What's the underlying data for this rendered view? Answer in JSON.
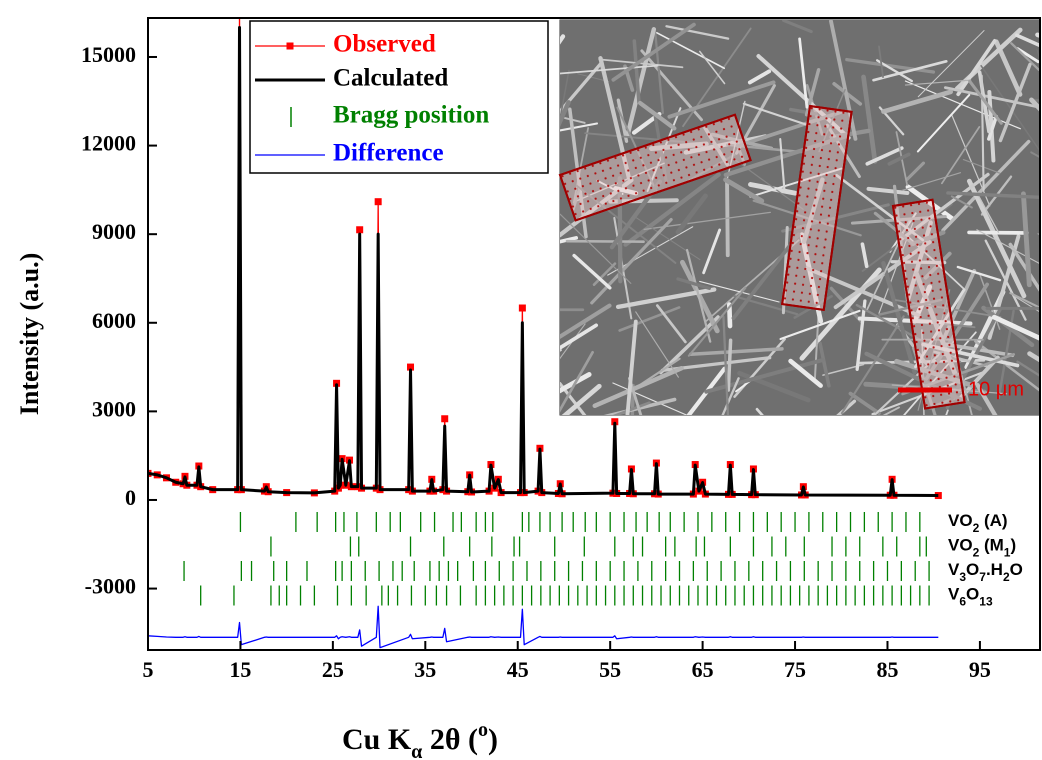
{
  "chart_data": {
    "type": "line",
    "y_label": "Intensity (a.u.)",
    "x_label_parts": [
      "Cu K",
      "α",
      " 2θ (",
      "o",
      ")"
    ],
    "xlim": [
      5,
      101.5
    ],
    "xticks": [
      5,
      15,
      25,
      35,
      45,
      55,
      65,
      75,
      85,
      95
    ],
    "ylim": [
      -5080,
      16320
    ],
    "yticks": [
      -3000,
      0,
      3000,
      6000,
      9000,
      12000,
      15000
    ],
    "x": [
      5,
      6,
      7,
      8,
      8.8,
      9.0,
      9.2,
      10.3,
      10.5,
      10.7,
      12,
      14.7,
      14.9,
      15.1,
      17.6,
      17.8,
      18,
      20,
      23,
      25.2,
      25.4,
      25.6,
      25.8,
      26.0,
      26.4,
      26.8,
      27.0,
      27.7,
      27.9,
      28.1,
      29.7,
      29.9,
      30.1,
      33.2,
      33.4,
      33.6,
      35.5,
      35.7,
      35.9,
      36.9,
      37.1,
      37.3,
      39.6,
      39.8,
      40.0,
      41.9,
      42.1,
      42.5,
      42.9,
      43.2,
      45.3,
      45.5,
      45.7,
      47.2,
      47.4,
      47.6,
      49.4,
      49.6,
      49.8,
      55.3,
      55.5,
      55.7,
      57.1,
      57.3,
      57.5,
      59.8,
      60.0,
      60.2,
      64.0,
      64.2,
      64.6,
      65.0,
      65.3,
      67.8,
      68.0,
      68.2,
      70.3,
      70.5,
      70.7,
      75.7,
      75.9,
      76.1,
      85.3,
      85.5,
      85.7,
      90.5
    ],
    "series": [
      {
        "name": "Observed",
        "color": "#ff0000",
        "markers": true,
        "values": [
          900,
          850,
          750,
          600,
          550,
          800,
          500,
          500,
          1150,
          450,
          350,
          350,
          16500,
          350,
          300,
          450,
          280,
          250,
          240,
          300,
          3950,
          400,
          500,
          1400,
          500,
          1350,
          450,
          450,
          9150,
          400,
          400,
          10100,
          350,
          350,
          4500,
          300,
          300,
          700,
          300,
          350,
          2750,
          300,
          280,
          850,
          270,
          300,
          1200,
          400,
          700,
          250,
          250,
          6500,
          250,
          300,
          1750,
          250,
          220,
          550,
          210,
          230,
          2650,
          220,
          220,
          1050,
          210,
          210,
          1250,
          200,
          200,
          1200,
          300,
          600,
          200,
          190,
          1200,
          190,
          180,
          1050,
          180,
          170,
          450,
          170,
          160,
          700,
          160,
          150
        ]
      },
      {
        "name": "Calculated",
        "color": "#000000",
        "markers": false,
        "values": [
          900,
          850,
          750,
          600,
          550,
          780,
          500,
          500,
          1120,
          450,
          350,
          350,
          16000,
          350,
          300,
          440,
          280,
          250,
          240,
          300,
          3900,
          400,
          500,
          1380,
          500,
          1330,
          450,
          450,
          9000,
          400,
          400,
          9000,
          350,
          350,
          4400,
          300,
          300,
          690,
          300,
          350,
          2500,
          300,
          280,
          840,
          270,
          300,
          1180,
          400,
          690,
          250,
          250,
          6000,
          250,
          300,
          1720,
          250,
          220,
          540,
          210,
          230,
          2600,
          220,
          220,
          1030,
          210,
          210,
          1230,
          200,
          200,
          1180,
          300,
          590,
          200,
          190,
          1180,
          190,
          180,
          1030,
          180,
          170,
          440,
          170,
          160,
          690,
          160,
          150
        ]
      },
      {
        "name": "Difference",
        "color": "#0000ff",
        "markers": false,
        "values": [
          -4600,
          -4620,
          -4640,
          -4650,
          -4650,
          -4630,
          -4650,
          -4650,
          -4620,
          -4650,
          -4650,
          -4650,
          -4150,
          -4900,
          -4650,
          -4640,
          -4650,
          -4650,
          -4650,
          -4650,
          -4600,
          -4700,
          -4650,
          -4630,
          -4650,
          -4630,
          -4650,
          -4650,
          -4400,
          -4950,
          -4650,
          -3600,
          -5000,
          -4650,
          -4550,
          -4700,
          -4650,
          -4640,
          -4650,
          -4650,
          -4350,
          -4800,
          -4650,
          -4640,
          -4650,
          -4650,
          -4630,
          -4650,
          -4640,
          -4650,
          -4650,
          -3700,
          -4900,
          -4650,
          -4620,
          -4650,
          -4650,
          -4640,
          -4650,
          -4650,
          -4600,
          -4700,
          -4650,
          -4640,
          -4650,
          -4650,
          -4630,
          -4650,
          -4650,
          -4630,
          -4650,
          -4640,
          -4650,
          -4650,
          -4630,
          -4650,
          -4650,
          -4630,
          -4650,
          -4650,
          -4640,
          -4650,
          -4650,
          -4640,
          -4650,
          -4650
        ]
      }
    ],
    "bragg_label": "Bragg position",
    "bragg_color": "#008000",
    "bragg_phases": [
      {
        "name": "VO2 (A)",
        "positions": [
          15.0,
          21.0,
          23.3,
          25.3,
          26.2,
          27.6,
          29.7,
          31.2,
          32.3,
          34.5,
          36.0,
          38.0,
          38.9,
          40.5,
          41.5,
          42.3,
          45.5,
          46.2,
          47.4,
          48.5,
          49.8,
          51.0,
          52.3,
          53.5,
          55.0,
          56.5,
          57.8,
          59.0,
          60.3,
          61.5,
          63.0,
          64.5,
          66.0,
          67.5,
          69.0,
          70.5,
          72.0,
          73.5,
          75.0,
          76.5,
          78.0,
          79.5,
          81.0,
          82.5,
          84.0,
          85.5,
          87.0,
          88.5
        ]
      },
      {
        "name": "VO2 (M1)",
        "positions": [
          18.3,
          26.9,
          27.8,
          33.4,
          37.0,
          39.8,
          42.2,
          44.6,
          45.2,
          49.0,
          52.2,
          55.5,
          57.5,
          58.5,
          61.0,
          62.0,
          64.3,
          65.2,
          68.0,
          70.5,
          72.5,
          74.0,
          76.0,
          79.0,
          80.5,
          82.0,
          84.5,
          86.0,
          88.5,
          89.2
        ]
      },
      {
        "name": "V3O7.H2O",
        "positions": [
          8.9,
          15.1,
          16.2,
          18.6,
          20.0,
          22.2,
          25.3,
          26.0,
          27.0,
          28.5,
          30.0,
          31.5,
          32.5,
          33.8,
          35.5,
          36.5,
          37.5,
          38.5,
          40.2,
          41.5,
          43.0,
          44.5,
          46.0,
          47.5,
          49.0,
          50.5,
          52.0,
          53.5,
          55.0,
          56.5,
          58.0,
          59.5,
          61.0,
          62.5,
          64.0,
          65.5,
          67.0,
          68.5,
          70.0,
          71.5,
          73.0,
          74.5,
          76.0,
          77.5,
          79.0,
          80.5,
          82.0,
          83.5,
          85.0,
          86.5,
          88.0,
          89.5
        ]
      },
      {
        "name": "V6O13",
        "positions": [
          10.7,
          14.3,
          18.3,
          19.2,
          20.0,
          21.5,
          23.0,
          25.5,
          27.0,
          28.6,
          30.3,
          31.0,
          32.0,
          33.5,
          35.0,
          36.2,
          37.3,
          38.8,
          40.5,
          41.5,
          42.5,
          43.5,
          44.5,
          45.5,
          46.5,
          47.5,
          48.5,
          49.5,
          50.5,
          51.5,
          52.5,
          53.5,
          54.5,
          55.5,
          56.5,
          57.5,
          58.5,
          59.5,
          60.5,
          61.5,
          62.5,
          63.5,
          64.5,
          65.5,
          66.5,
          67.5,
          68.5,
          69.5,
          70.5,
          71.5,
          72.5,
          73.5,
          74.5,
          75.5,
          76.5,
          77.5,
          78.5,
          79.5,
          80.5,
          81.5,
          82.5,
          83.5,
          84.5,
          85.5,
          86.5,
          87.5,
          88.5,
          89.5
        ]
      }
    ],
    "inset_scale_label": "10 μm"
  }
}
